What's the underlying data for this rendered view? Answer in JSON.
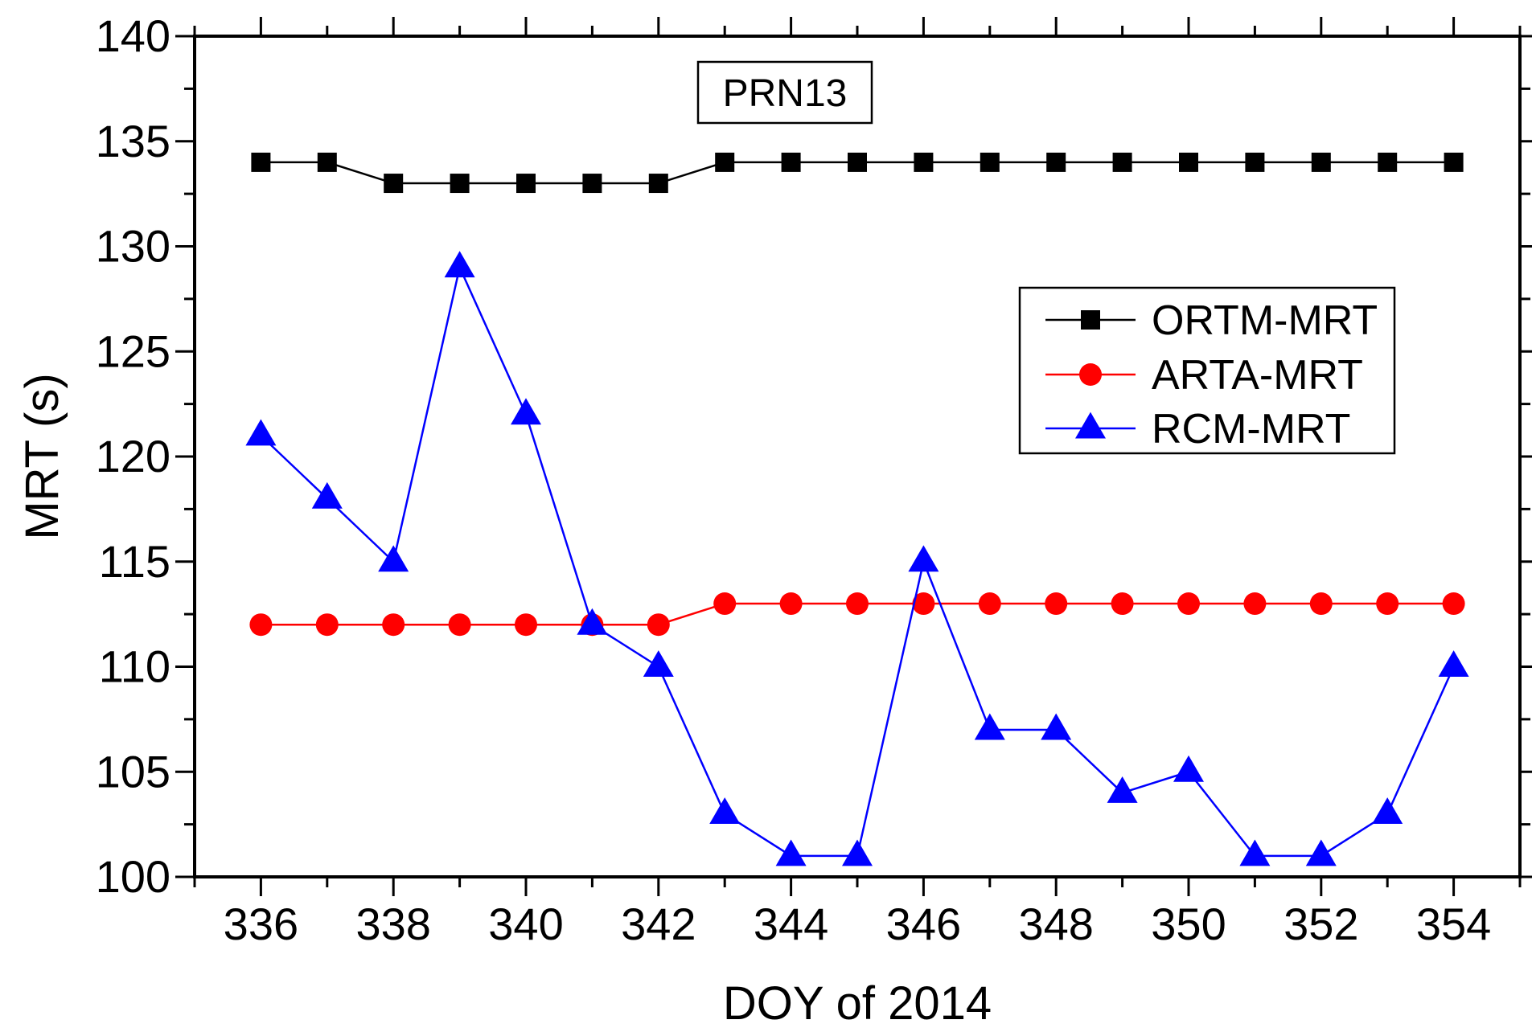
{
  "chart_data": {
    "type": "line",
    "xlabel": "DOY of 2014",
    "ylabel": "MRT (s)",
    "annotation": "PRN13",
    "xlim": [
      335,
      355
    ],
    "ylim": [
      100,
      140
    ],
    "xticks": [
      336,
      338,
      340,
      342,
      344,
      346,
      348,
      350,
      352,
      354
    ],
    "yticks": [
      100,
      105,
      110,
      115,
      120,
      125,
      130,
      135,
      140
    ],
    "x": [
      336,
      337,
      338,
      339,
      340,
      341,
      342,
      343,
      344,
      345,
      346,
      347,
      348,
      349,
      350,
      351,
      352,
      353,
      354
    ],
    "legend_position": "upper-right",
    "grid": false,
    "series": [
      {
        "name": "ORTM-MRT",
        "color": "#000000",
        "marker": "square",
        "values": [
          134,
          134,
          133,
          133,
          133,
          133,
          133,
          134,
          134,
          134,
          134,
          134,
          134,
          134,
          134,
          134,
          134,
          134,
          134
        ]
      },
      {
        "name": "ARTA-MRT",
        "color": "#ff0000",
        "marker": "circle",
        "values": [
          112,
          112,
          112,
          112,
          112,
          112,
          112,
          113,
          113,
          113,
          113,
          113,
          113,
          113,
          113,
          113,
          113,
          113,
          113
        ]
      },
      {
        "name": "RCM-MRT",
        "color": "#0000ff",
        "marker": "triangle",
        "values": [
          121,
          118,
          115,
          129,
          122,
          112,
          110,
          103,
          101,
          101,
          115,
          107,
          107,
          104,
          105,
          101,
          101,
          103,
          110
        ]
      }
    ]
  }
}
